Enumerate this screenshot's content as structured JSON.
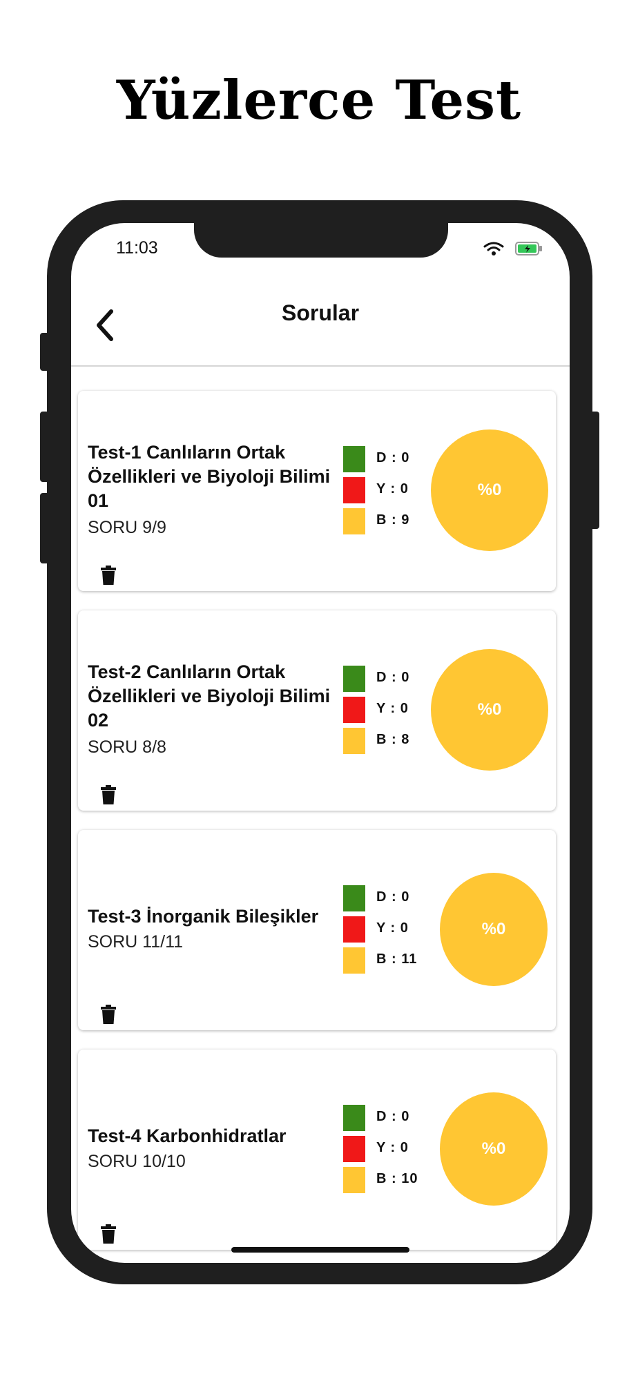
{
  "headline": "Yüzlerce Test",
  "status_bar": {
    "time": "11:03",
    "icons": [
      "wifi-icon",
      "battery-charging-icon"
    ]
  },
  "nav": {
    "title": "Sorular",
    "back_icon": "chevron-left-icon"
  },
  "tests": [
    {
      "title": "Test-1 Canlıların Ortak Özellikleri ve Biyoloji Bilimi 01",
      "progress": "SORU 9/9",
      "correct": "D : 0",
      "wrong": "Y : 0",
      "blank": "B : 9",
      "percent": "%0"
    },
    {
      "title": "Test-2 Canlıların Ortak Özellikleri ve Biyoloji Bilimi 02",
      "progress": "SORU 8/8",
      "correct": "D : 0",
      "wrong": "Y : 0",
      "blank": "B : 8",
      "percent": "%0"
    },
    {
      "title": "Test-3 İnorganik Bileşikler",
      "progress": "SORU 11/11",
      "correct": "D : 0",
      "wrong": "Y : 0",
      "blank": "B : 11",
      "percent": "%0"
    },
    {
      "title": "Test-4 Karbonhidratlar",
      "progress": "SORU 10/10",
      "correct": "D : 0",
      "wrong": "Y : 0",
      "blank": "B : 10",
      "percent": "%0"
    }
  ],
  "colors": {
    "correct": "#3A8A1A",
    "wrong": "#F01818",
    "blank": "#FFC633",
    "phone_frame": "#1F1F1F"
  },
  "icons": {
    "delete": "trash-icon"
  }
}
